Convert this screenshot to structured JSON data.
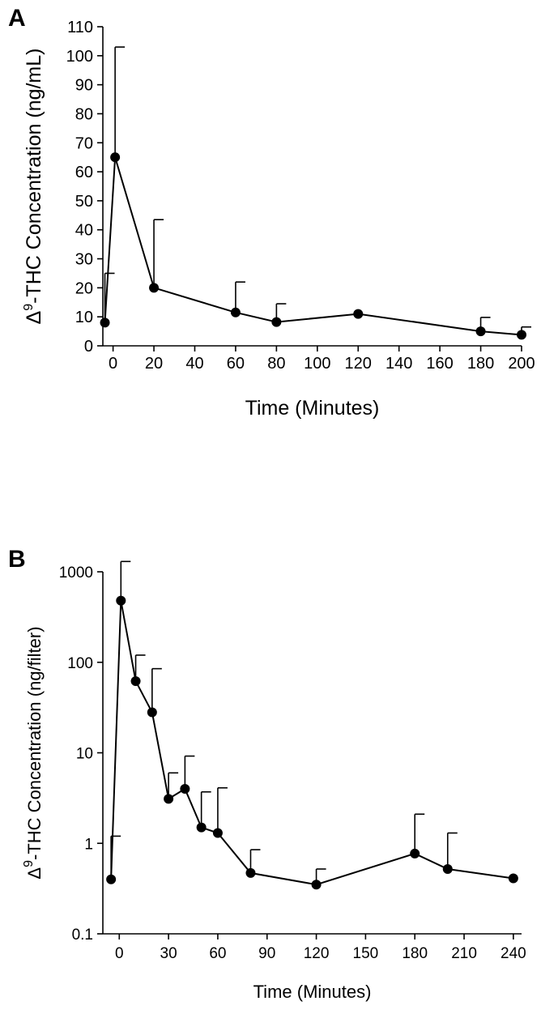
{
  "chart_data": [
    {
      "panel_label": "A",
      "type": "line",
      "xlabel": "Time (Minutes)",
      "ylabel_prefix": "Δ",
      "ylabel_sup": "9",
      "ylabel_rest": "-THC Concentration (ng/mL)",
      "xlim": [
        -5,
        200
      ],
      "ylim": [
        0,
        110
      ],
      "y_scale": "linear",
      "xticks": [
        0,
        20,
        40,
        60,
        80,
        100,
        120,
        140,
        160,
        180,
        200
      ],
      "yticks": [
        0,
        10,
        20,
        30,
        40,
        50,
        60,
        70,
        80,
        90,
        100,
        110
      ],
      "grid": false,
      "series": [
        {
          "x": [
            -4,
            1,
            20,
            60,
            80,
            120,
            180,
            200
          ],
          "y": [
            8,
            65,
            20,
            11.5,
            8.2,
            11,
            5,
            3.8
          ],
          "error_upper": [
            25,
            103,
            43.5,
            22,
            14.5,
            null,
            9.8,
            6.5
          ]
        }
      ]
    },
    {
      "panel_label": "B",
      "type": "line",
      "xlabel": "Time (Minutes)",
      "ylabel_prefix": "Δ",
      "ylabel_sup": "9",
      "ylabel_rest": "-THC Concentration (ng/filter)",
      "xlim": [
        -10,
        245
      ],
      "ylim": [
        0.1,
        1000
      ],
      "y_scale": "log",
      "xticks": [
        0,
        30,
        60,
        90,
        120,
        150,
        180,
        210,
        240
      ],
      "yticks": [
        0.1,
        1,
        10,
        100,
        1000
      ],
      "ytick_labels": [
        "0.1",
        "1",
        "10",
        "100",
        "1000"
      ],
      "grid": false,
      "series": [
        {
          "x": [
            -5,
            1,
            10,
            20,
            30,
            40,
            50,
            60,
            80,
            120,
            180,
            200,
            240
          ],
          "y": [
            0.4,
            480,
            62,
            28,
            3.1,
            4,
            1.5,
            1.3,
            0.47,
            0.35,
            0.77,
            0.52,
            0.41
          ],
          "error_upper": [
            1.2,
            1300,
            120,
            85,
            6,
            9.2,
            3.7,
            4.1,
            0.85,
            0.52,
            2.1,
            1.3,
            null
          ]
        }
      ]
    }
  ]
}
